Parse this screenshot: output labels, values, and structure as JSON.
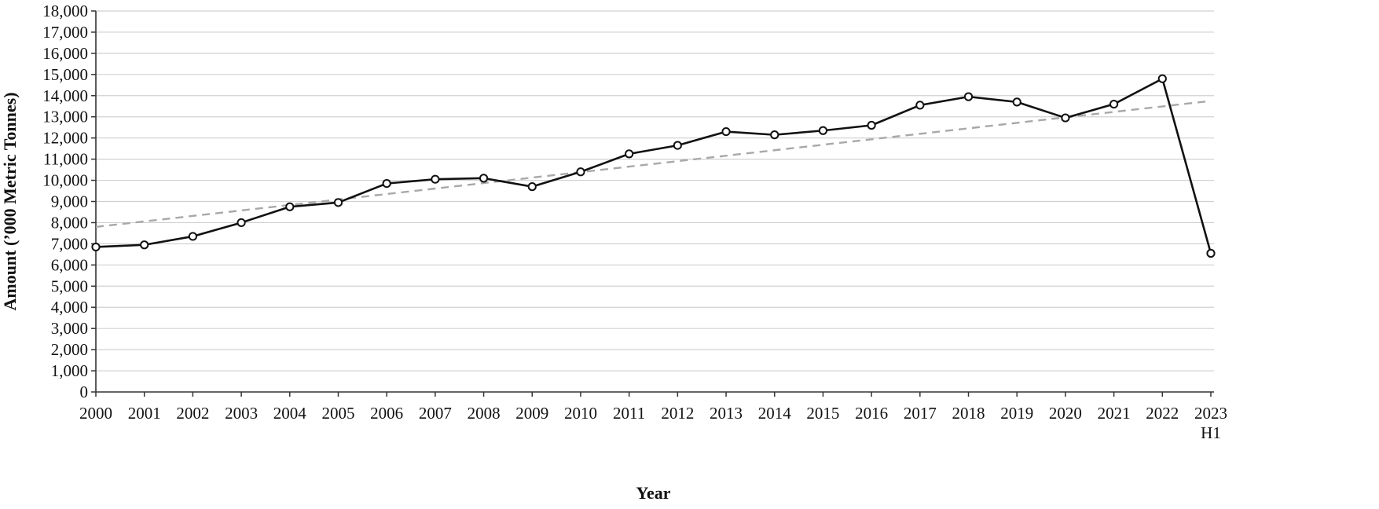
{
  "chart_data": {
    "type": "line",
    "title": "",
    "xlabel": "Year",
    "ylabel": "Amount (’000 Metric Tonnes)",
    "categories": [
      "2000",
      "2001",
      "2002",
      "2003",
      "2004",
      "2005",
      "2006",
      "2007",
      "2008",
      "2009",
      "2010",
      "2011",
      "2012",
      "2013",
      "2014",
      "2015",
      "2016",
      "2017",
      "2018",
      "2019",
      "2020",
      "2021",
      "2022",
      "2023"
    ],
    "category_sublabels": {
      "2023": "H1"
    },
    "series": [
      {
        "values": [
          6850,
          6950,
          7350,
          8000,
          8750,
          8950,
          9850,
          10050,
          10100,
          9700,
          10400,
          11250,
          11650,
          12300,
          12150,
          12350,
          12600,
          13550,
          13950,
          13700,
          12950,
          13600,
          14800,
          6550
        ]
      }
    ],
    "trendline": {
      "style": "dashed",
      "start": 7800,
      "end": 13750
    },
    "ylim": [
      0,
      18000
    ],
    "ytick_step": 1000,
    "grid": true,
    "legend": "none",
    "colors": {
      "line": "#111111",
      "marker_fill": "#ffffff",
      "trend": "#a8a8a8",
      "grid": "#d0d0d0",
      "axis": "#333333"
    }
  }
}
